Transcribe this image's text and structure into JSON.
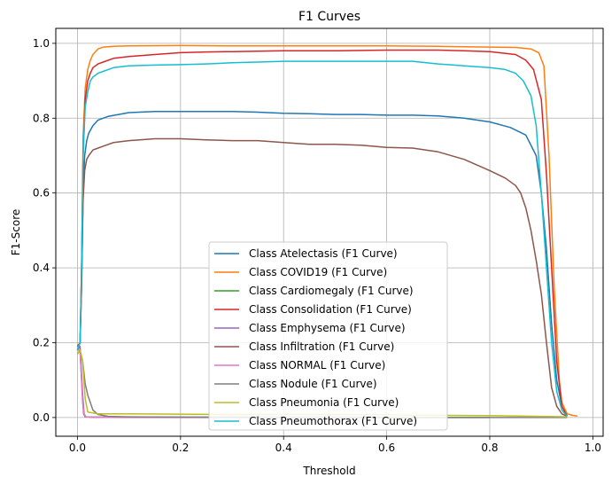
{
  "chart_data": {
    "type": "line",
    "title": "F1 Curves",
    "xlabel": "Threshold",
    "ylabel": "F1-Score",
    "xlim": [
      -0.042,
      1.02
    ],
    "ylim": [
      -0.05,
      1.04
    ],
    "x_ticks": [
      0.0,
      0.2,
      0.4,
      0.6,
      0.8,
      1.0
    ],
    "x_tick_labels": [
      "0.0",
      "0.2",
      "0.4",
      "0.6",
      "0.8",
      "1.0"
    ],
    "y_ticks": [
      0.0,
      0.2,
      0.4,
      0.6,
      0.8,
      1.0
    ],
    "y_tick_labels": [
      "0.0",
      "0.2",
      "0.4",
      "0.6",
      "0.8",
      "1.0"
    ],
    "grid": true,
    "legend_position": "lower-center",
    "series": [
      {
        "name": "Class Atelectasis (F1 Curve)",
        "color": "#1f77b4",
        "x": [
          0.0,
          0.005,
          0.008,
          0.011,
          0.014,
          0.018,
          0.022,
          0.03,
          0.04,
          0.06,
          0.08,
          0.1,
          0.15,
          0.2,
          0.25,
          0.3,
          0.35,
          0.4,
          0.45,
          0.5,
          0.55,
          0.6,
          0.65,
          0.7,
          0.75,
          0.8,
          0.84,
          0.87,
          0.89,
          0.9,
          0.91,
          0.92,
          0.93,
          0.94,
          0.95
        ],
        "y": [
          0.19,
          0.2,
          0.35,
          0.6,
          0.7,
          0.74,
          0.76,
          0.78,
          0.795,
          0.805,
          0.81,
          0.815,
          0.818,
          0.818,
          0.818,
          0.818,
          0.816,
          0.813,
          0.812,
          0.81,
          0.81,
          0.808,
          0.808,
          0.806,
          0.8,
          0.79,
          0.775,
          0.755,
          0.7,
          0.6,
          0.45,
          0.25,
          0.1,
          0.03,
          0.005
        ]
      },
      {
        "name": "Class COVID19 (F1 Curve)",
        "color": "#ff7f0e",
        "x": [
          0.0,
          0.005,
          0.008,
          0.011,
          0.015,
          0.02,
          0.025,
          0.03,
          0.04,
          0.05,
          0.07,
          0.1,
          0.2,
          0.3,
          0.4,
          0.5,
          0.6,
          0.7,
          0.8,
          0.85,
          0.88,
          0.895,
          0.905,
          0.915,
          0.925,
          0.935,
          0.94,
          0.95,
          0.96,
          0.97
        ],
        "y": [
          0.18,
          0.2,
          0.4,
          0.75,
          0.88,
          0.93,
          0.955,
          0.97,
          0.985,
          0.99,
          0.992,
          0.993,
          0.994,
          0.993,
          0.993,
          0.993,
          0.993,
          0.992,
          0.99,
          0.989,
          0.985,
          0.975,
          0.94,
          0.7,
          0.35,
          0.1,
          0.04,
          0.01,
          0.006,
          0.004
        ]
      },
      {
        "name": "Class Cardiomegaly (F1 Curve)",
        "color": "#2ca02c",
        "x": [
          0.0,
          0.005,
          0.01,
          0.012,
          0.015,
          0.03,
          0.1,
          0.3,
          0.5,
          0.7,
          0.8
        ],
        "y": [
          0.17,
          0.18,
          0.05,
          0.01,
          0.002,
          0.001,
          0.001,
          0.001,
          0.0,
          0.0,
          0.0
        ]
      },
      {
        "name": "Class Consolidation (F1 Curve)",
        "color": "#d62728",
        "x": [
          0.0,
          0.005,
          0.008,
          0.011,
          0.015,
          0.02,
          0.025,
          0.03,
          0.04,
          0.05,
          0.07,
          0.1,
          0.15,
          0.2,
          0.25,
          0.3,
          0.4,
          0.5,
          0.6,
          0.7,
          0.75,
          0.8,
          0.85,
          0.87,
          0.885,
          0.9,
          0.91,
          0.92,
          0.93,
          0.94,
          0.95
        ],
        "y": [
          0.18,
          0.2,
          0.4,
          0.7,
          0.85,
          0.9,
          0.92,
          0.935,
          0.945,
          0.95,
          0.96,
          0.965,
          0.97,
          0.975,
          0.977,
          0.978,
          0.98,
          0.98,
          0.982,
          0.982,
          0.98,
          0.978,
          0.97,
          0.955,
          0.93,
          0.85,
          0.65,
          0.4,
          0.15,
          0.03,
          0.003
        ]
      },
      {
        "name": "Class Emphysema (F1 Curve)",
        "color": "#9467bd",
        "x": [
          0.0,
          0.005,
          0.01,
          0.013,
          0.016,
          0.03,
          0.1,
          0.3,
          0.5,
          0.7
        ],
        "y": [
          0.18,
          0.19,
          0.06,
          0.01,
          0.002,
          0.001,
          0.001,
          0.0,
          0.0,
          0.0
        ]
      },
      {
        "name": "Class Infiltration (F1 Curve)",
        "color": "#8c564b",
        "x": [
          0.0,
          0.005,
          0.008,
          0.011,
          0.014,
          0.018,
          0.022,
          0.03,
          0.04,
          0.05,
          0.07,
          0.1,
          0.15,
          0.2,
          0.25,
          0.3,
          0.35,
          0.4,
          0.45,
          0.5,
          0.55,
          0.6,
          0.65,
          0.7,
          0.75,
          0.8,
          0.83,
          0.85,
          0.86,
          0.87,
          0.88,
          0.89,
          0.9,
          0.91,
          0.92,
          0.93,
          0.94,
          0.95
        ],
        "y": [
          0.19,
          0.2,
          0.35,
          0.58,
          0.66,
          0.69,
          0.7,
          0.715,
          0.72,
          0.725,
          0.735,
          0.74,
          0.745,
          0.745,
          0.742,
          0.74,
          0.74,
          0.735,
          0.73,
          0.73,
          0.728,
          0.722,
          0.72,
          0.71,
          0.69,
          0.66,
          0.64,
          0.62,
          0.6,
          0.56,
          0.5,
          0.42,
          0.33,
          0.2,
          0.08,
          0.03,
          0.01,
          0.003
        ]
      },
      {
        "name": "Class NORMAL (F1 Curve)",
        "color": "#e377c2",
        "x": [
          0.0,
          0.005,
          0.01,
          0.013,
          0.016,
          0.03,
          0.1,
          0.3,
          0.5
        ],
        "y": [
          0.18,
          0.18,
          0.04,
          0.008,
          0.002,
          0.001,
          0.0,
          0.0,
          0.0
        ]
      },
      {
        "name": "Class Nodule (F1 Curve)",
        "color": "#7f7f7f",
        "x": [
          0.0,
          0.005,
          0.01,
          0.015,
          0.02,
          0.025,
          0.03,
          0.04,
          0.06,
          0.1,
          0.2,
          0.3,
          0.5,
          0.7,
          0.9,
          0.95
        ],
        "y": [
          0.17,
          0.18,
          0.15,
          0.09,
          0.06,
          0.04,
          0.02,
          0.008,
          0.003,
          0.002,
          0.001,
          0.001,
          0.001,
          0.0,
          0.0,
          0.0
        ]
      },
      {
        "name": "Class Pneumonia (F1 Curve)",
        "color": "#bcbd22",
        "x": [
          0.0,
          0.005,
          0.01,
          0.015,
          0.02,
          0.03,
          0.04,
          0.1,
          0.2,
          0.3,
          0.4,
          0.5,
          0.6,
          0.7,
          0.8,
          0.9,
          0.95
        ],
        "y": [
          0.17,
          0.18,
          0.15,
          0.05,
          0.015,
          0.012,
          0.01,
          0.01,
          0.009,
          0.008,
          0.008,
          0.008,
          0.007,
          0.006,
          0.005,
          0.003,
          0.002
        ]
      },
      {
        "name": "Class Pneumothorax (F1 Curve)",
        "color": "#17becf",
        "x": [
          0.0,
          0.005,
          0.008,
          0.011,
          0.015,
          0.02,
          0.025,
          0.03,
          0.04,
          0.05,
          0.07,
          0.1,
          0.15,
          0.2,
          0.25,
          0.3,
          0.35,
          0.4,
          0.5,
          0.6,
          0.65,
          0.7,
          0.75,
          0.8,
          0.83,
          0.85,
          0.865,
          0.88,
          0.89,
          0.9,
          0.91,
          0.92,
          0.93,
          0.94,
          0.95
        ],
        "y": [
          0.18,
          0.2,
          0.4,
          0.7,
          0.83,
          0.87,
          0.9,
          0.91,
          0.92,
          0.925,
          0.935,
          0.94,
          0.942,
          0.943,
          0.945,
          0.948,
          0.95,
          0.952,
          0.952,
          0.952,
          0.952,
          0.945,
          0.94,
          0.935,
          0.93,
          0.92,
          0.9,
          0.86,
          0.78,
          0.6,
          0.4,
          0.2,
          0.07,
          0.02,
          0.003
        ]
      }
    ]
  }
}
